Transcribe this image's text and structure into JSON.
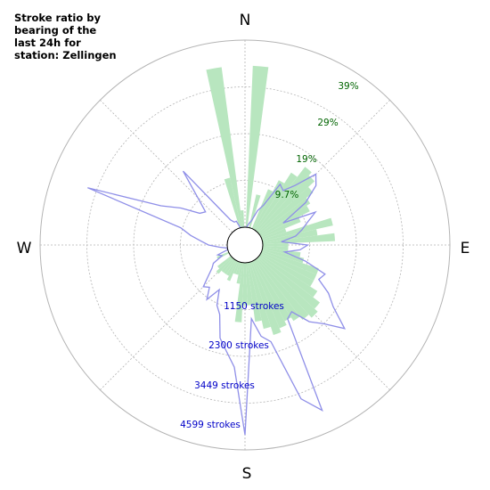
{
  "chart_data": {
    "type": "polar",
    "title": "Stroke ratio by bearing of the last 24h for station: Zellingen",
    "directions": [
      "N",
      "E",
      "S",
      "W"
    ],
    "ratio_ticks": [
      "9.7%",
      "19%",
      "29%",
      "39%"
    ],
    "ratio_max": 44,
    "stroke_ticks": [
      "1150 strokes",
      "2300 strokes",
      "3449 strokes",
      "4599 strokes"
    ],
    "stroke_max": 5000,
    "series": [
      {
        "name": "",
        "kind": "bars",
        "color": "#b8e6bf",
        "values": [
          [
            0,
            0
          ],
          [
            5,
            38
          ],
          [
            10,
            0
          ],
          [
            15,
            8
          ],
          [
            20,
            0
          ],
          [
            25,
            10
          ],
          [
            30,
            13
          ],
          [
            35,
            16
          ],
          [
            40,
            19
          ],
          [
            45,
            18
          ],
          [
            50,
            16
          ],
          [
            55,
            14
          ],
          [
            60,
            13
          ],
          [
            65,
            10
          ],
          [
            70,
            6
          ],
          [
            75,
            17
          ],
          [
            80,
            13
          ],
          [
            85,
            17
          ],
          [
            90,
            6
          ],
          [
            95,
            6
          ],
          [
            100,
            9
          ],
          [
            105,
            10
          ],
          [
            110,
            14
          ],
          [
            115,
            14
          ],
          [
            120,
            14
          ],
          [
            125,
            16
          ],
          [
            130,
            18
          ],
          [
            135,
            19
          ],
          [
            140,
            18
          ],
          [
            145,
            17
          ],
          [
            150,
            16
          ],
          [
            155,
            17
          ],
          [
            160,
            18
          ],
          [
            165,
            16
          ],
          [
            170,
            14
          ],
          [
            175,
            10
          ],
          [
            180,
            10
          ],
          [
            185,
            14
          ],
          [
            190,
            5
          ],
          [
            195,
            3
          ],
          [
            200,
            3
          ],
          [
            205,
            5
          ],
          [
            210,
            4
          ],
          [
            215,
            4
          ],
          [
            220,
            4
          ],
          [
            225,
            5
          ],
          [
            230,
            4
          ],
          [
            235,
            0
          ],
          [
            240,
            0
          ],
          [
            245,
            3
          ],
          [
            250,
            0
          ],
          [
            255,
            0
          ],
          [
            260,
            0
          ],
          [
            265,
            0
          ],
          [
            270,
            0
          ],
          [
            275,
            0
          ],
          [
            280,
            0
          ],
          [
            285,
            0
          ],
          [
            290,
            0
          ],
          [
            295,
            0
          ],
          [
            300,
            0
          ],
          [
            305,
            0
          ],
          [
            310,
            0
          ],
          [
            315,
            0
          ],
          [
            320,
            0
          ],
          [
            325,
            0
          ],
          [
            330,
            0
          ],
          [
            335,
            0
          ],
          [
            340,
            0
          ],
          [
            345,
            12
          ],
          [
            350,
            38
          ],
          [
            355,
            4
          ]
        ]
      },
      {
        "name": "",
        "kind": "line",
        "color": "#8f8fe8",
        "values": [
          [
            0,
            0
          ],
          [
            5,
            0
          ],
          [
            10,
            100
          ],
          [
            15,
            200
          ],
          [
            20,
            500
          ],
          [
            25,
            700
          ],
          [
            30,
            1400
          ],
          [
            35,
            1300
          ],
          [
            40,
            1600
          ],
          [
            45,
            2200
          ],
          [
            50,
            2000
          ],
          [
            55,
            1500
          ],
          [
            60,
            700
          ],
          [
            65,
            1600
          ],
          [
            70,
            1300
          ],
          [
            75,
            1100
          ],
          [
            80,
            900
          ],
          [
            85,
            500
          ],
          [
            90,
            1200
          ],
          [
            95,
            1000
          ],
          [
            100,
            600
          ],
          [
            105,
            1200
          ],
          [
            110,
            1800
          ],
          [
            115,
            1700
          ],
          [
            120,
            2100
          ],
          [
            125,
            2400
          ],
          [
            130,
            3000
          ],
          [
            135,
            2500
          ],
          [
            140,
            2200
          ],
          [
            145,
            1700
          ],
          [
            150,
            1800
          ],
          [
            155,
            4400
          ],
          [
            160,
            3900
          ],
          [
            165,
            2200
          ],
          [
            170,
            2000
          ],
          [
            175,
            1500
          ],
          [
            180,
            4600
          ],
          [
            185,
            2800
          ],
          [
            190,
            2400
          ],
          [
            195,
            2100
          ],
          [
            200,
            1500
          ],
          [
            205,
            1300
          ],
          [
            210,
            900
          ],
          [
            215,
            1300
          ],
          [
            220,
            1000
          ],
          [
            225,
            1100
          ],
          [
            230,
            800
          ],
          [
            235,
            600
          ],
          [
            240,
            500
          ],
          [
            245,
            200
          ],
          [
            250,
            300
          ],
          [
            255,
            0
          ],
          [
            260,
            0
          ],
          [
            265,
            200
          ],
          [
            270,
            500
          ],
          [
            275,
            700
          ],
          [
            280,
            1000
          ],
          [
            285,
            1300
          ],
          [
            290,
            4000
          ],
          [
            295,
            2000
          ],
          [
            300,
            1500
          ],
          [
            305,
            1000
          ],
          [
            310,
            900
          ],
          [
            315,
            1300
          ],
          [
            320,
            2100
          ],
          [
            325,
            700
          ],
          [
            330,
            300
          ],
          [
            335,
            200
          ],
          [
            340,
            200
          ],
          [
            345,
            0
          ],
          [
            350,
            0
          ],
          [
            355,
            0
          ]
        ]
      }
    ],
    "grid": true,
    "colors": {
      "ratio_label": "#006400",
      "stroke_label": "#0000c8",
      "grid": "#b4b4b4"
    }
  }
}
